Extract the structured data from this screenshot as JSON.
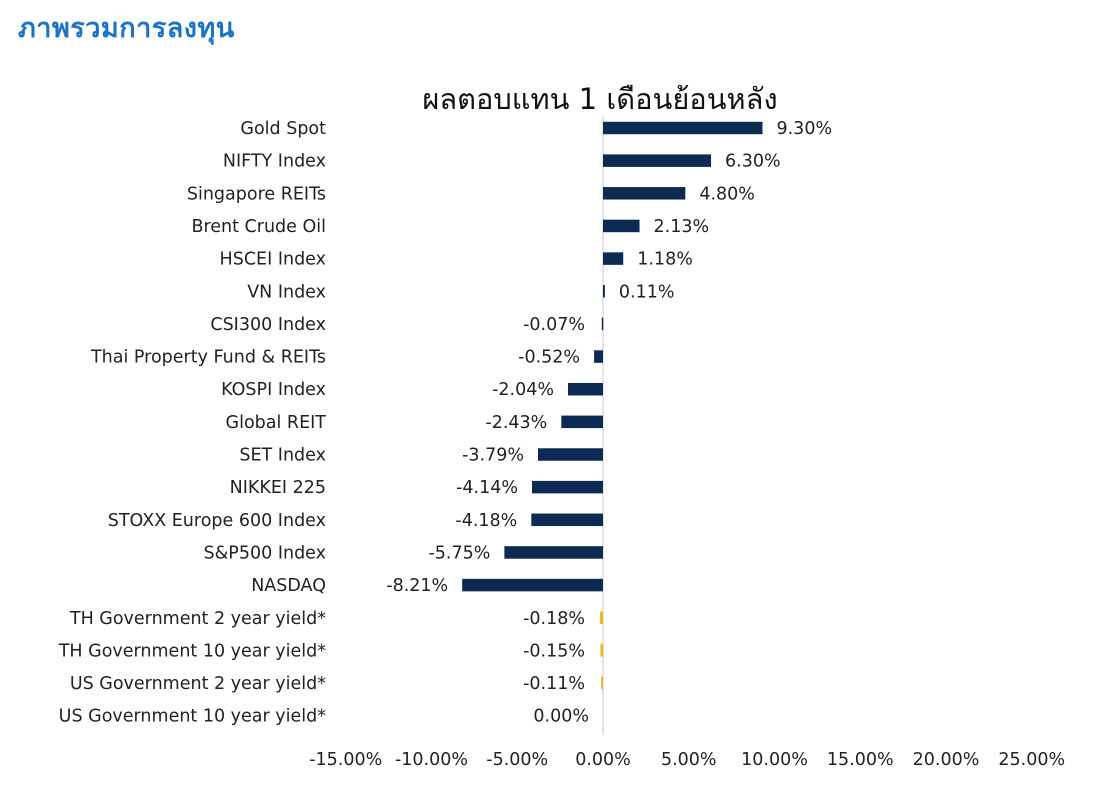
{
  "page": {
    "heading": "ภาพรวมการลงทุน"
  },
  "chart_data": {
    "type": "bar",
    "orientation": "horizontal",
    "title": "ผลตอบแทน 1 เดือนย้อนหลัง",
    "xlabel": "",
    "ylabel": "",
    "xlim": [
      -15,
      25
    ],
    "x_ticks": [
      -15,
      -10,
      -5,
      0,
      5,
      10,
      15,
      20,
      25
    ],
    "x_tick_labels": [
      "-15.00%",
      "-10.00%",
      "-5.00%",
      "0.00%",
      "5.00%",
      "10.00%",
      "15.00%",
      "20.00%",
      "25.00%"
    ],
    "grid": false,
    "legend": "none",
    "colors": {
      "equity": "#0d2a52",
      "yield": "#f2b61b"
    },
    "categories": [
      "Gold Spot",
      "NIFTY Index",
      "Singapore REITs",
      "Brent Crude Oil",
      "HSCEI Index",
      "VN Index",
      "CSI300 Index",
      "Thai Property Fund & REITs",
      "KOSPI Index",
      "Global REIT",
      "SET Index",
      "NIKKEI 225",
      "STOXX Europe 600 Index",
      "S&P500 Index",
      "NASDAQ",
      "TH Government 2 year yield*",
      "TH Government 10 year yield*",
      "US Government 2 year yield*",
      "US Government 10 year yield*"
    ],
    "values": [
      9.3,
      6.3,
      4.8,
      2.13,
      1.18,
      0.11,
      -0.07,
      -0.52,
      -2.04,
      -2.43,
      -3.79,
      -4.14,
      -4.18,
      -5.75,
      -8.21,
      -0.18,
      -0.15,
      -0.11,
      0.0
    ],
    "value_labels": [
      "9.30%",
      "6.30%",
      "4.80%",
      "2.13%",
      "1.18%",
      "0.11%",
      "-0.07%",
      "-0.52%",
      "-2.04%",
      "-2.43%",
      "-3.79%",
      "-4.14%",
      "-4.18%",
      "-5.75%",
      "-8.21%",
      "-0.18%",
      "-0.15%",
      "-0.11%",
      "0.00%"
    ],
    "groups": [
      "equity",
      "equity",
      "equity",
      "equity",
      "equity",
      "equity",
      "equity",
      "equity",
      "equity",
      "equity",
      "equity",
      "equity",
      "equity",
      "equity",
      "equity",
      "yield",
      "yield",
      "yield",
      "yield"
    ]
  }
}
